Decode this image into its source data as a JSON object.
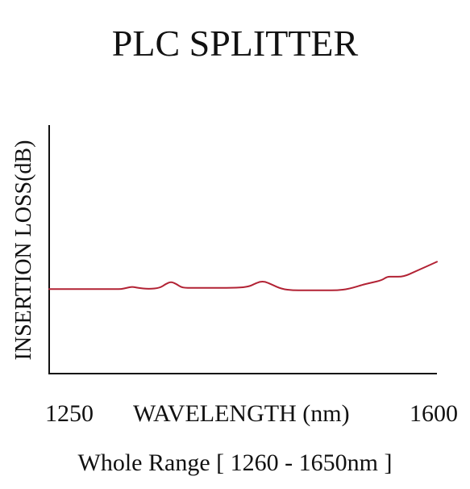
{
  "chart_data": {
    "type": "line",
    "title": "PLC SPLITTER",
    "ylabel": "INSERTION LOSS(dB)",
    "xlabel": "WAVELENGTH (nm)",
    "subtitle": "Whole Range [ 1260 - 1650nm ]",
    "xtick_labels": [
      "1250",
      "1600"
    ],
    "xlim": [
      1250,
      1600
    ],
    "ylim": [
      0,
      1
    ],
    "grid": false,
    "color": "#b22234",
    "series": [
      {
        "x": [
          1250,
          1270,
          1290,
          1310,
          1315,
          1320,
          1325,
          1330,
          1340,
          1350,
          1355,
          1360,
          1365,
          1370,
          1380,
          1400,
          1420,
          1430,
          1435,
          1440,
          1445,
          1450,
          1460,
          1470,
          1480,
          1490,
          1500,
          1510,
          1520,
          1535,
          1540,
          1550,
          1555,
          1560,
          1570,
          1580,
          1590,
          1600
        ],
        "y": [
          0.34,
          0.34,
          0.34,
          0.34,
          0.34,
          0.345,
          0.35,
          0.345,
          0.34,
          0.345,
          0.36,
          0.37,
          0.36,
          0.345,
          0.345,
          0.345,
          0.345,
          0.35,
          0.36,
          0.37,
          0.37,
          0.36,
          0.34,
          0.335,
          0.335,
          0.335,
          0.335,
          0.335,
          0.34,
          0.36,
          0.365,
          0.375,
          0.39,
          0.39,
          0.39,
          0.41,
          0.43,
          0.45
        ]
      }
    ]
  }
}
